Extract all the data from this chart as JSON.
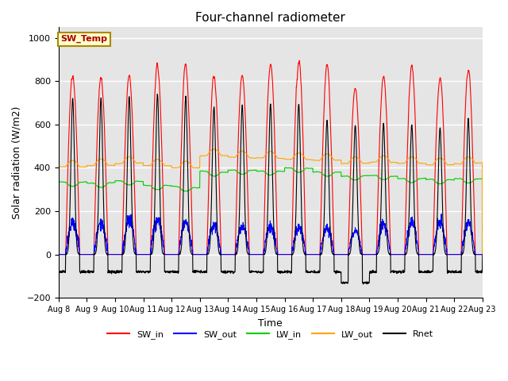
{
  "title": "Four-channel radiometer",
  "xlabel": "Time",
  "ylabel": "Solar radiation (W/m2)",
  "ylim": [
    -200,
    1050
  ],
  "background_color": "#e5e5e5",
  "grid_color": "white",
  "annotation_text": "SW_Temp",
  "annotation_color": "#aa0000",
  "annotation_bg": "#ffffcc",
  "annotation_border": "#aa8800",
  "x_tick_labels": [
    "Aug 8",
    "Aug 9",
    "Aug 10",
    "Aug 11",
    "Aug 12",
    "Aug 13",
    "Aug 14",
    "Aug 15",
    "Aug 16",
    "Aug 17",
    "Aug 18",
    "Aug 19",
    "Aug 20",
    "Aug 21",
    "Aug 22",
    "Aug 23"
  ],
  "colors": {
    "SW_in": "#ff0000",
    "SW_out": "#0000ff",
    "LW_in": "#00cc00",
    "LW_out": "#ffa500",
    "Rnet": "#000000"
  },
  "n_days": 15,
  "SW_in_peaks": [
    840,
    845,
    850,
    875,
    860,
    830,
    850,
    855,
    890,
    855,
    790,
    830,
    840,
    845,
    860
  ],
  "SW_out_peaks": [
    145,
    150,
    155,
    160,
    150,
    135,
    125,
    130,
    125,
    120,
    110,
    145,
    150,
    145,
    140
  ],
  "LW_in_base": [
    335,
    330,
    340,
    320,
    315,
    385,
    390,
    385,
    400,
    380,
    360,
    365,
    350,
    345,
    350
  ],
  "LW_out_base": [
    405,
    410,
    420,
    410,
    400,
    455,
    450,
    445,
    440,
    435,
    420,
    425,
    420,
    415,
    420
  ],
  "Rnet_peaks": [
    720,
    720,
    730,
    740,
    730,
    680,
    690,
    695,
    695,
    620,
    595,
    605,
    600,
    585,
    625
  ],
  "Rnet_night": [
    -80,
    -80,
    -80,
    -80,
    -80,
    -80,
    -80,
    -80,
    -80,
    -80,
    -130,
    -80,
    -80,
    -80,
    -80
  ],
  "figsize": [
    6.4,
    4.8
  ],
  "dpi": 100
}
